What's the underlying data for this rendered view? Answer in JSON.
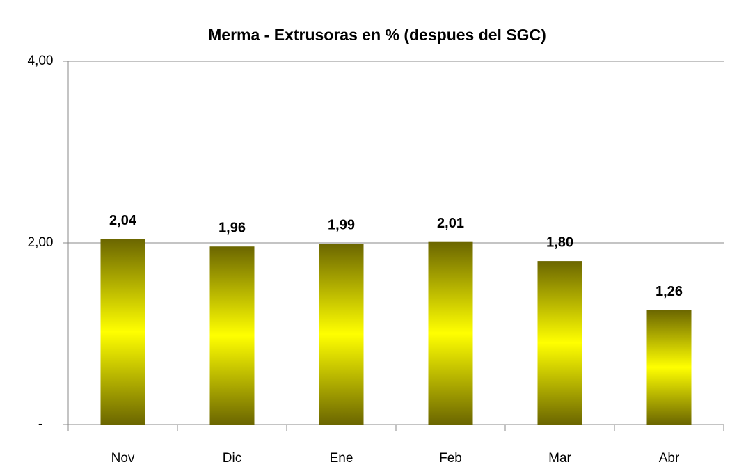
{
  "chart_data": {
    "type": "bar",
    "title": "Merma - Extrusoras en % (despues del SGC)",
    "categories": [
      "Nov",
      "Dic",
      "Ene",
      "Feb",
      "Mar",
      "Abr"
    ],
    "values": [
      2.04,
      1.96,
      1.99,
      2.01,
      1.8,
      1.26
    ],
    "value_labels": [
      "2,04",
      "1,96",
      "1,99",
      "2,01",
      "1,80",
      "1,26"
    ],
    "color": [
      "#6b6600",
      "#ffff00"
    ],
    "ylim": [
      0,
      4
    ],
    "yticks": [
      {
        "value": 0,
        "label": "-"
      },
      {
        "value": 2,
        "label": "2,00"
      },
      {
        "value": 4,
        "label": "4,00"
      }
    ],
    "grid": true
  }
}
